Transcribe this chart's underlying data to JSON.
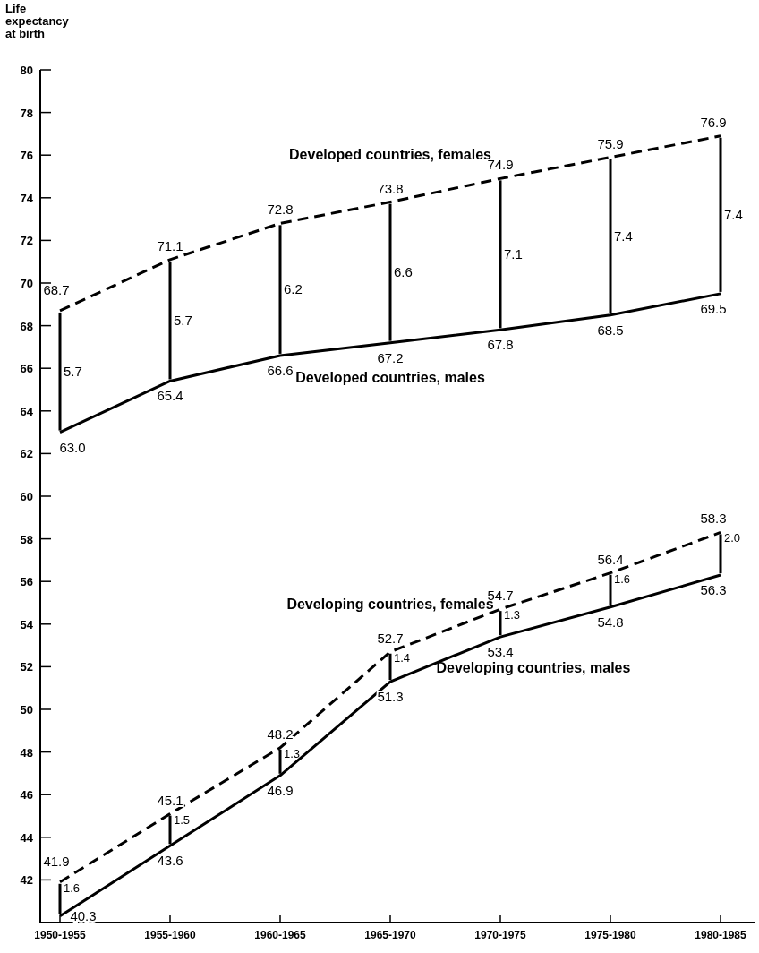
{
  "chart_data": {
    "type": "line",
    "ylabel": "Life expectancy at birth",
    "categories": [
      "1950-1955",
      "1955-1960",
      "1960-1965",
      "1965-1970",
      "1970-1975",
      "1975-1980",
      "1980-1985"
    ],
    "ylim": [
      40,
      80
    ],
    "yticks": [
      42,
      44,
      46,
      48,
      50,
      52,
      54,
      56,
      58,
      60,
      62,
      64,
      66,
      68,
      70,
      72,
      74,
      76,
      78,
      80
    ],
    "grid": false,
    "marker": "none",
    "data_labels": true,
    "series": [
      {
        "name": "Developed countries, females",
        "color": "#000000",
        "line_style": "dashed",
        "values": [
          68.7,
          71.1,
          72.8,
          73.8,
          74.9,
          75.9,
          76.9
        ]
      },
      {
        "name": "Developed countries, males",
        "color": "#000000",
        "line_style": "solid",
        "values": [
          63.0,
          65.4,
          66.6,
          67.2,
          67.8,
          68.5,
          69.5
        ],
        "value_labels": [
          "63.0",
          "65.4",
          "66.6",
          "67.2",
          "67.8",
          "68.5",
          "69.5"
        ]
      },
      {
        "name": "Developing countries, females",
        "color": "#000000",
        "line_style": "dashed",
        "values": [
          41.9,
          45.1,
          48.2,
          52.7,
          54.7,
          56.4,
          58.3
        ]
      },
      {
        "name": "Developing countries, males",
        "color": "#000000",
        "line_style": "solid",
        "values": [
          40.3,
          43.6,
          46.9,
          51.3,
          53.4,
          54.8,
          56.3
        ]
      },
      {
        "type": "bar",
        "color": "#000000",
        "base": [
          63.0,
          65.4,
          66.6,
          67.2,
          67.8,
          68.5,
          69.5
        ],
        "values": [
          5.7,
          5.7,
          6.2,
          6.6,
          7.1,
          7.4,
          7.4
        ]
      },
      {
        "type": "bar",
        "color": "#000000",
        "base": [
          40.3,
          43.6,
          46.9,
          51.3,
          53.4,
          54.8,
          56.3
        ],
        "values": [
          1.6,
          1.5,
          1.3,
          1.4,
          1.3,
          1.6,
          2.0
        ],
        "value_labels": [
          "1.6",
          "1.5",
          "1.3",
          "1.4",
          "1.3",
          "1.6",
          "2.0"
        ]
      }
    ]
  }
}
